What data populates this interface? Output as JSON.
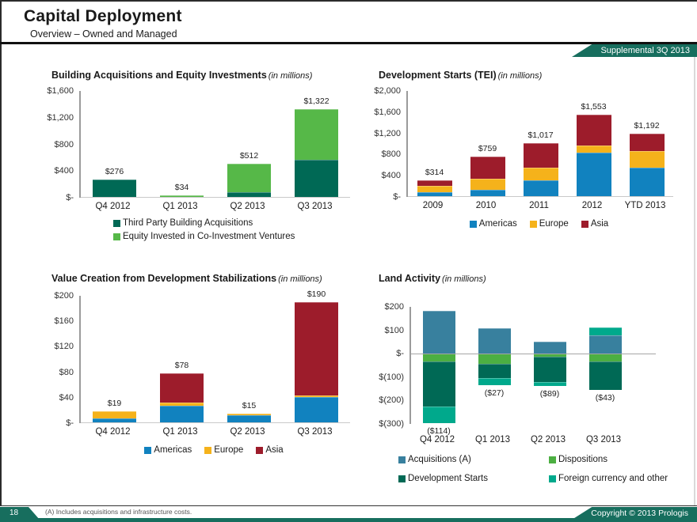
{
  "header": {
    "title": "Capital Deployment",
    "subtitle": "Overview – Owned and Managed",
    "banner": "Supplemental 3Q 2013"
  },
  "footer": {
    "page_number": "18",
    "footnote": "(A) Includes acquisitions and infrastructure costs.",
    "copyright": "Copyright © 2013 Prologis"
  },
  "colors": {
    "brand_teal": "#176E5E",
    "dark_green": "#006955",
    "light_green": "#56B848",
    "dispositions_green": "#4CAF42",
    "americas_blue": "#1182BF",
    "europe_yellow": "#F5B21B",
    "asia_red": "#9D1C2B",
    "acquisitions_steel_blue": "#38809E",
    "fx_turquoise": "#00A98C"
  },
  "chart_data": [
    {
      "type": "bar",
      "stacked": true,
      "title": "Building Acquisitions and Equity Investments",
      "units_label": "(in millions)",
      "categories": [
        "Q4 2012",
        "Q1 2013",
        "Q2 2013",
        "Q3 2013"
      ],
      "series": [
        {
          "name": "Third Party Building Acquisitions",
          "color": "#006955",
          "values": [
            276,
            0,
            80,
            565
          ]
        },
        {
          "name": "Equity Invested in Co-Investment Ventures",
          "color": "#56B848",
          "values": [
            0,
            34,
            432,
            757
          ]
        }
      ],
      "totals_labels": [
        "$276",
        "$34",
        "$512",
        "$1,322"
      ],
      "ylim": [
        0,
        1600
      ],
      "y_ticks": [
        {
          "v": 1600,
          "label": "$1,600"
        },
        {
          "v": 1200,
          "label": "$1,200"
        },
        {
          "v": 800,
          "label": "$800"
        },
        {
          "v": 400,
          "label": "$400"
        },
        {
          "v": 0,
          "label": "$-"
        }
      ],
      "legend_position": "below-left-stacked",
      "grid": false
    },
    {
      "type": "bar",
      "stacked": true,
      "title": "Development Starts (TEI)",
      "units_label": "(in millions)",
      "categories": [
        "2009",
        "2010",
        "2011",
        "2012",
        "YTD 2013"
      ],
      "series": [
        {
          "name": "Americas",
          "color": "#1182BF",
          "values": [
            90,
            135,
            310,
            840,
            545
          ]
        },
        {
          "name": "Europe",
          "color": "#F5B21B",
          "values": [
            120,
            215,
            240,
            130,
            320
          ]
        },
        {
          "name": "Asia",
          "color": "#9D1C2B",
          "values": [
            104,
            409,
            467,
            583,
            327
          ]
        }
      ],
      "totals_labels": [
        "$314",
        "$759",
        "$1,017",
        "$1,553",
        "$1,192"
      ],
      "ylim": [
        0,
        2000
      ],
      "y_ticks": [
        {
          "v": 2000,
          "label": "$2,000"
        },
        {
          "v": 1600,
          "label": "$1,600"
        },
        {
          "v": 1200,
          "label": "$1,200"
        },
        {
          "v": 800,
          "label": "$800"
        },
        {
          "v": 400,
          "label": "$400"
        },
        {
          "v": 0,
          "label": "$-"
        }
      ],
      "legend_position": "below-center-row",
      "grid": false
    },
    {
      "type": "bar",
      "stacked": true,
      "title": "Value Creation from Development Stabilizations",
      "units_label": "(in millions)",
      "categories": [
        "Q4 2012",
        "Q1 2013",
        "Q2 2013",
        "Q3 2013"
      ],
      "series": [
        {
          "name": "Americas",
          "color": "#1182BF",
          "values": [
            8,
            27,
            12,
            41
          ]
        },
        {
          "name": "Europe",
          "color": "#F5B21B",
          "values": [
            11,
            5,
            3,
            3
          ]
        },
        {
          "name": "Asia",
          "color": "#9D1C2B",
          "values": [
            0,
            46,
            0,
            146
          ]
        }
      ],
      "totals_labels": [
        "$19",
        "$78",
        "$15",
        "$190"
      ],
      "ylim": [
        0,
        200
      ],
      "y_ticks": [
        {
          "v": 200,
          "label": "$200"
        },
        {
          "v": 160,
          "label": "$160"
        },
        {
          "v": 120,
          "label": "$120"
        },
        {
          "v": 80,
          "label": "$80"
        },
        {
          "v": 40,
          "label": "$40"
        },
        {
          "v": 0,
          "label": "$-"
        }
      ],
      "legend_position": "below-center-row",
      "grid": false
    },
    {
      "type": "bar",
      "stacked": true,
      "title": "Land Activity",
      "units_label": "(in millions)",
      "categories": [
        "Q4 2012",
        "Q1 2013",
        "Q2 2013",
        "Q3 2013"
      ],
      "series": [
        {
          "name": "Acquisitions (A)",
          "color": "#38809E",
          "values": [
            182,
            108,
            50,
            78
          ]
        },
        {
          "name": "Dispositions",
          "color": "#4CAF42",
          "values": [
            -33,
            -43,
            -12,
            -33
          ]
        },
        {
          "name": "Development Starts",
          "color": "#006955",
          "values": [
            -194,
            -61,
            -110,
            -121
          ]
        },
        {
          "name": "Foreign currency and other",
          "color": "#00A98C",
          "values": [
            -69,
            -31,
            -17,
            33
          ]
        }
      ],
      "net_labels": [
        "($114)",
        "($27)",
        "($89)",
        "($43)"
      ],
      "ylim": [
        -300,
        200
      ],
      "y_ticks": [
        {
          "v": 200,
          "label": "$200"
        },
        {
          "v": 100,
          "label": "$100"
        },
        {
          "v": 0,
          "label": "$-"
        },
        {
          "v": -100,
          "label": "$(100)"
        },
        {
          "v": -200,
          "label": "$(200)"
        },
        {
          "v": -300,
          "label": "$(300)"
        }
      ],
      "legend_position": "below-two-column-grid",
      "grid": false
    }
  ]
}
